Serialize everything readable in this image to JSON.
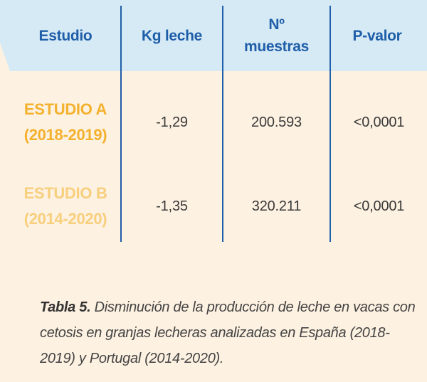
{
  "colors": {
    "header_bg": "#d6eaf6",
    "page_bg": "#fdf1e1",
    "header_text": "#1f5ea8",
    "divider": "#1f5ea8",
    "study_a": "#f4b12e",
    "study_b": "#f7cf7d",
    "value_text": "#3a3a3a"
  },
  "table": {
    "headers": [
      "Estudio",
      "Kg leche",
      "Nº muestras",
      "P-valor"
    ],
    "rows": [
      {
        "estudio": "ESTUDIO A (2018-2019)",
        "kg_leche": "-1,29",
        "n_muestras": "200.593",
        "p_valor": "<0,0001"
      },
      {
        "estudio": "ESTUDIO B (2014-2020)",
        "kg_leche": "-1,35",
        "n_muestras": "320.211",
        "p_valor": "<0,0001"
      }
    ]
  },
  "caption": {
    "lead": "Tabla 5.",
    "text": "Disminución de la producción de leche en vacas con cetosis en granjas lecheras analizadas en España (2018-2019) y Portugal (2014-2020)."
  }
}
